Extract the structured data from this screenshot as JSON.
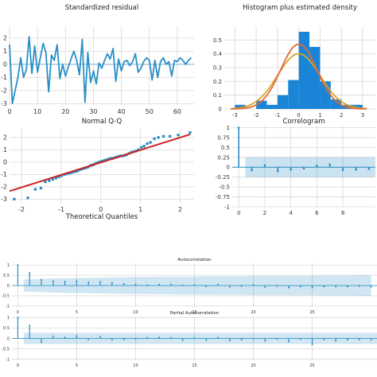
{
  "chart_data": [
    {
      "type": "line",
      "title": "Standardized residual",
      "xlim": [
        0,
        66
      ],
      "ylim": [
        -3.1,
        2.9
      ],
      "xticks": [
        0,
        10,
        20,
        30,
        40,
        50,
        60
      ],
      "yticks": [
        -3,
        -2,
        -1,
        0,
        1,
        2
      ],
      "grid": true,
      "color": "#2a8fc6",
      "series": [
        {
          "x": [
            0,
            1,
            2,
            3,
            4,
            5,
            6,
            7,
            8,
            9,
            10,
            11,
            12,
            13,
            14,
            15,
            16,
            17,
            18,
            19,
            20,
            21,
            22,
            23,
            24,
            25,
            26,
            27,
            28,
            29,
            30,
            31,
            32,
            33,
            34,
            35,
            36,
            37,
            38,
            39,
            40,
            41,
            42,
            43,
            44,
            45,
            46,
            47,
            48,
            49,
            50,
            51,
            52,
            53,
            54,
            55,
            56,
            57,
            58,
            59,
            60,
            61,
            62,
            63,
            64,
            65
          ],
          "y": [
            1.5,
            -3.0,
            -2.0,
            -1.0,
            0.5,
            -1.0,
            -0.4,
            2.1,
            -0.7,
            1.4,
            -0.6,
            0.5,
            1.6,
            0.9,
            -2.1,
            0.7,
            0.3,
            1.5,
            -1.1,
            0.0,
            -0.9,
            -0.2,
            0.4,
            1.0,
            0.3,
            -0.8,
            1.9,
            -2.9,
            0.9,
            -1.4,
            -0.5,
            -1.5,
            0.1,
            -0.3,
            0.3,
            0.8,
            0.4,
            1.2,
            -1.3,
            0.4,
            -0.5,
            0.2,
            0.3,
            -0.1,
            0.2,
            0.8,
            -0.6,
            -0.3,
            0.2,
            0.5,
            0.3,
            -1.2,
            0.3,
            -1.0,
            0.2,
            0.5,
            0.0,
            0.2,
            -0.9,
            0.3,
            0.2,
            0.5,
            0.3,
            0.0,
            0.3,
            0.5
          ]
        }
      ]
    },
    {
      "type": "bar",
      "title": "Histogram plus estimated density",
      "xlim": [
        -3.5,
        3.6
      ],
      "ylim": [
        0,
        0.6
      ],
      "xticks": [
        -3,
        -2,
        -1,
        0,
        1,
        2,
        3
      ],
      "yticks": [
        0.0,
        0.1,
        0.2,
        0.3,
        0.4,
        0.5
      ],
      "grid": true,
      "bin_edges": [
        -3.0,
        -2.5,
        -2.0,
        -1.5,
        -1.0,
        -0.5,
        0.0,
        0.5,
        1.0,
        1.5,
        2.0,
        2.5,
        3.0
      ],
      "values": [
        0.03,
        0.0,
        0.06,
        0.03,
        0.1,
        0.21,
        0.56,
        0.45,
        0.2,
        0.07,
        0.03,
        0.03
      ],
      "bar_color": "#1a85d6",
      "kde_color": "#e1693a",
      "normal_color": "#d9a52a",
      "kde_peak": 0.47,
      "kde_sd": 0.85,
      "normal_peak": 0.4,
      "normal_sd": 1.0
    },
    {
      "type": "scatter",
      "title": "Normal Q-Q",
      "xlabel": "Theoretical Quantiles",
      "xlim": [
        -2.3,
        2.35
      ],
      "ylim": [
        -3.3,
        2.7
      ],
      "xticks": [
        -2,
        -1,
        0,
        1,
        2
      ],
      "yticks": [
        -3,
        -2,
        -1,
        0,
        1,
        2
      ],
      "grid": true,
      "point_color": "#2a8fc6",
      "line_color": "#cc2222",
      "fit_line": {
        "x": [
          -2.3,
          2.25
        ],
        "y": [
          -2.35,
          2.25
        ]
      },
      "points": {
        "x": [
          -2.18,
          -1.84,
          -1.65,
          -1.51,
          -1.4,
          -1.3,
          -1.21,
          -1.13,
          -1.06,
          -0.99,
          -0.92,
          -0.86,
          -0.8,
          -0.74,
          -0.68,
          -0.63,
          -0.58,
          -0.52,
          -0.47,
          -0.42,
          -0.37,
          -0.32,
          -0.27,
          -0.23,
          -0.18,
          -0.13,
          -0.08,
          -0.04,
          0.01,
          0.06,
          0.1,
          0.15,
          0.2,
          0.24,
          0.29,
          0.34,
          0.39,
          0.44,
          0.49,
          0.54,
          0.6,
          0.65,
          0.71,
          0.77,
          0.83,
          0.89,
          0.95,
          1.02,
          1.09,
          1.17,
          1.25,
          1.35,
          1.45,
          1.58,
          1.74,
          1.95,
          2.25
        ],
        "y": [
          -3.0,
          -2.9,
          -2.2,
          -2.1,
          -1.6,
          -1.5,
          -1.4,
          -1.3,
          -1.2,
          -1.1,
          -1.0,
          -0.95,
          -0.9,
          -0.85,
          -0.8,
          -0.75,
          -0.7,
          -0.6,
          -0.55,
          -0.5,
          -0.45,
          -0.4,
          -0.3,
          -0.25,
          -0.2,
          -0.1,
          -0.05,
          0.0,
          0.05,
          0.1,
          0.15,
          0.2,
          0.25,
          0.3,
          0.3,
          0.35,
          0.4,
          0.45,
          0.5,
          0.5,
          0.55,
          0.6,
          0.7,
          0.8,
          0.85,
          0.9,
          1.0,
          1.2,
          1.3,
          1.5,
          1.6,
          1.9,
          2.0,
          2.1,
          2.1,
          2.2,
          2.4
        ]
      }
    },
    {
      "type": "bar",
      "title": "Correlogram",
      "xlim": [
        -0.5,
        10.5
      ],
      "ylim": [
        -1.0,
        1.05
      ],
      "xticks": [
        0,
        2,
        4,
        6,
        8
      ],
      "yticks": [
        -1.0,
        -0.75,
        -0.5,
        -0.25,
        0.0,
        0.25,
        0.5,
        0.75,
        1.0
      ],
      "grid": true,
      "color": "#2a8fc6",
      "confidence_band": 0.25,
      "band_start": 0.5,
      "x": [
        0,
        1,
        2,
        3,
        4,
        5,
        6,
        7,
        8,
        9,
        10
      ],
      "values": [
        1.0,
        -0.08,
        0.05,
        -0.1,
        -0.06,
        -0.03,
        0.04,
        0.07,
        -0.07,
        -0.06,
        -0.04
      ]
    },
    {
      "type": "bar",
      "title": "Autocorrelation",
      "xlim": [
        -0.5,
        30.5
      ],
      "ylim": [
        -1.05,
        1.05
      ],
      "xticks": [
        0,
        5,
        10,
        15,
        20,
        25
      ],
      "yticks": [
        -1.0,
        -0.5,
        0.0,
        0.5,
        1.0
      ],
      "grid": true,
      "color": "#2a8fc6",
      "confidence_band": [
        0.3,
        0.3,
        0.32,
        0.34,
        0.36,
        0.37,
        0.38,
        0.39,
        0.4,
        0.41,
        0.42,
        0.42,
        0.43,
        0.43,
        0.44,
        0.44,
        0.45,
        0.45,
        0.46,
        0.46,
        0.47,
        0.47,
        0.47,
        0.48,
        0.48,
        0.48,
        0.49,
        0.49,
        0.49,
        0.5,
        0.5
      ],
      "x": [
        0,
        1,
        2,
        3,
        4,
        5,
        6,
        7,
        8,
        9,
        10,
        11,
        12,
        13,
        14,
        15,
        16,
        17,
        18,
        19,
        20,
        21,
        22,
        23,
        24,
        25,
        26,
        27,
        28,
        29,
        30
      ],
      "values": [
        1.0,
        0.62,
        0.28,
        0.22,
        0.2,
        0.22,
        0.16,
        0.18,
        0.13,
        0.08,
        0.05,
        0.02,
        0.05,
        0.06,
        0.0,
        0.03,
        -0.04,
        0.05,
        -0.06,
        -0.03,
        0.03,
        -0.08,
        -0.02,
        -0.1,
        -0.05,
        -0.09,
        -0.05,
        -0.05,
        -0.05,
        -0.03,
        -0.06
      ]
    },
    {
      "type": "bar",
      "title": "Partial Autocorrelation",
      "xlim": [
        -0.5,
        30.5
      ],
      "ylim": [
        -1.05,
        1.05
      ],
      "xticks": [
        0,
        5,
        10,
        15,
        20,
        25
      ],
      "yticks": [
        -1.0,
        -0.5,
        0.0,
        0.5,
        1.0
      ],
      "grid": true,
      "color": "#2a8fc6",
      "confidence_band": 0.27,
      "x": [
        0,
        1,
        2,
        3,
        4,
        5,
        6,
        7,
        8,
        9,
        10,
        11,
        12,
        13,
        14,
        15,
        16,
        17,
        18,
        19,
        20,
        21,
        22,
        23,
        24,
        25,
        26,
        27,
        28,
        29,
        30
      ],
      "values": [
        1.0,
        0.62,
        -0.18,
        0.1,
        0.05,
        0.12,
        -0.05,
        0.08,
        -0.05,
        -0.05,
        -0.02,
        0.03,
        0.05,
        0.03,
        -0.08,
        0.03,
        -0.08,
        0.03,
        -0.1,
        -0.05,
        -0.02,
        -0.12,
        -0.02,
        -0.15,
        -0.03,
        -0.28,
        -0.05,
        -0.12,
        -0.06,
        -0.05,
        -0.06
      ]
    }
  ]
}
